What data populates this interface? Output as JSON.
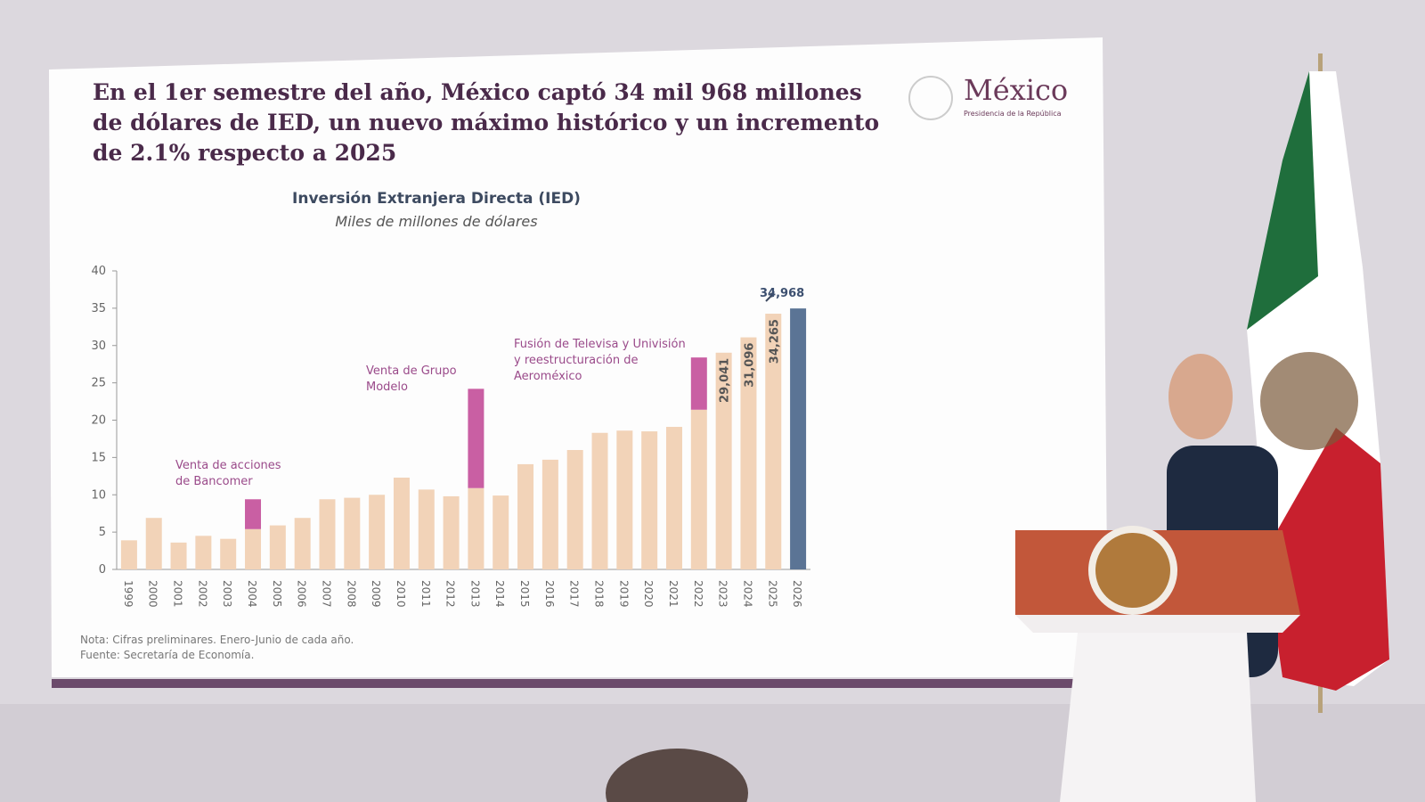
{
  "header": {
    "title_lines": [
      "En el 1er semestre del año, México captó 34 mil 968 millones",
      "de dólares de IED, un nuevo máximo histórico y un incremento",
      "de 2.1% respecto a 2025"
    ],
    "logo": "México",
    "logo_subtitle": "Presidencia de la República"
  },
  "chart_data": {
    "type": "bar",
    "stacked": true,
    "title": "Inversión Extranjera Directa (IED)",
    "subtitle": "Miles de millones de dólares",
    "categories": [
      "1999",
      "2000",
      "2001",
      "2002",
      "2003",
      "2004",
      "2005",
      "2006",
      "2007",
      "2008",
      "2009",
      "2010",
      "2011",
      "2012",
      "2013",
      "2014",
      "2015",
      "2016",
      "2017",
      "2018",
      "2019",
      "2020",
      "2021",
      "2022",
      "2023",
      "2024",
      "2025",
      "2026"
    ],
    "series": [
      {
        "color": "#f2d3b8",
        "values": [
          3.9,
          6.9,
          3.6,
          4.5,
          4.1,
          5.4,
          5.9,
          6.9,
          9.4,
          9.6,
          10.0,
          12.3,
          10.7,
          9.8,
          10.9,
          9.9,
          14.1,
          14.7,
          16.0,
          18.3,
          18.6,
          18.5,
          19.1,
          21.4,
          29.041,
          31.096,
          34.265,
          null
        ],
        "value_labels": [
          null,
          null,
          null,
          null,
          null,
          null,
          null,
          null,
          null,
          null,
          null,
          null,
          null,
          null,
          null,
          null,
          null,
          null,
          null,
          null,
          null,
          null,
          null,
          null,
          "29,041",
          "31,096",
          "34,265",
          null
        ]
      },
      {
        "color": "#c95fa3",
        "values": [
          null,
          null,
          null,
          null,
          null,
          4.0,
          null,
          null,
          null,
          null,
          null,
          null,
          null,
          null,
          13.3,
          null,
          null,
          null,
          null,
          null,
          null,
          null,
          null,
          7.0,
          null,
          null,
          null,
          null
        ]
      },
      {
        "color": "#5b7495",
        "values": [
          null,
          null,
          null,
          null,
          null,
          null,
          null,
          null,
          null,
          null,
          null,
          null,
          null,
          null,
          null,
          null,
          null,
          null,
          null,
          null,
          null,
          null,
          null,
          null,
          null,
          null,
          null,
          34.968
        ],
        "value_labels": [
          null,
          null,
          null,
          null,
          null,
          null,
          null,
          null,
          null,
          null,
          null,
          null,
          null,
          null,
          null,
          null,
          null,
          null,
          null,
          null,
          null,
          null,
          null,
          null,
          null,
          null,
          null,
          "34,968"
        ]
      }
    ],
    "ylim": [
      0,
      40
    ],
    "yticks": [
      0,
      5,
      10,
      15,
      20,
      25,
      30,
      35,
      40
    ],
    "annotations": [
      [
        "Venta de acciones",
        "de Bancomer"
      ],
      [
        "Venta de Grupo",
        "Modelo"
      ],
      [
        "Fusión de Televisa y Univisión",
        "y reestructuración de",
        "Aeroméxico"
      ]
    ],
    "notes": [
      "Nota: Cifras preliminares. Enero-Junio de cada año.",
      "Fuente: Secretaría de Economía."
    ]
  }
}
